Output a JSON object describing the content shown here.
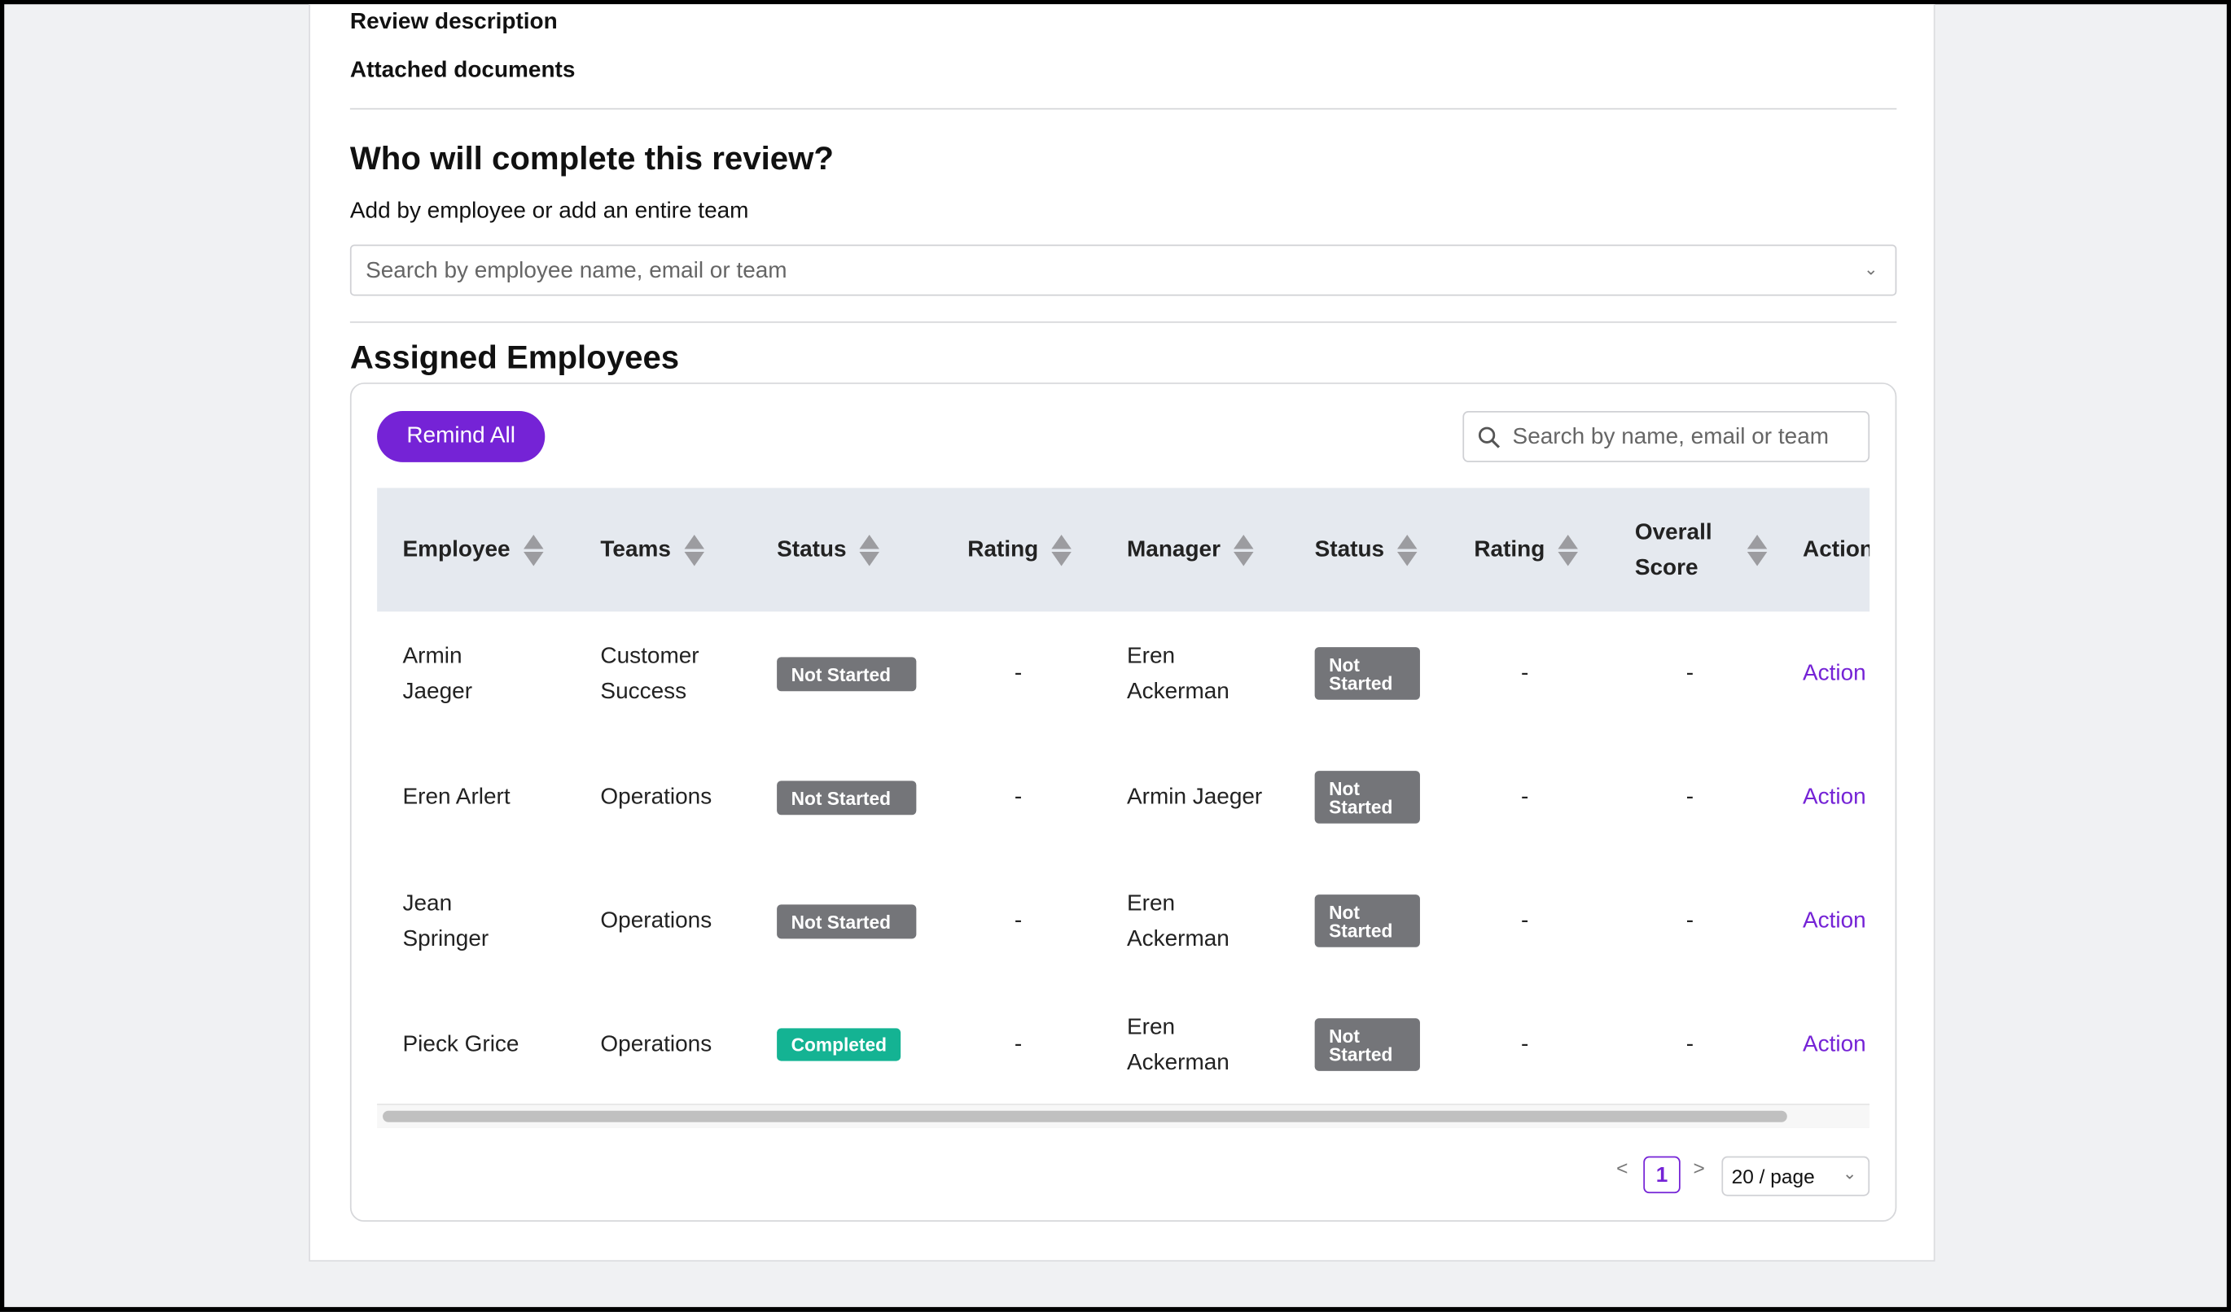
{
  "sections": {
    "review_description": "Review description",
    "attached_documents": "Attached documents"
  },
  "who": {
    "title": "Who will complete this review?",
    "subtitle": "Add by employee or add an entire team",
    "search_placeholder": "Search by employee name, email or team"
  },
  "assigned": {
    "title": "Assigned Employees",
    "remind_all": "Remind All",
    "search_placeholder": "Search by name, email or team",
    "columns": [
      "Employee",
      "Teams",
      "Status",
      "Rating",
      "Manager",
      "Status",
      "Rating",
      "Overall Score",
      "Action"
    ],
    "rows": [
      {
        "employee": "Armin Jaeger",
        "team": "Customer Success",
        "status": "Not Started",
        "rating": "-",
        "manager": "Eren Ackerman",
        "manager_status": "Not Started",
        "manager_rating": "-",
        "overall": "-",
        "action": "Action"
      },
      {
        "employee": "Eren Arlert",
        "team": "Operations",
        "status": "Not Started",
        "rating": "-",
        "manager": "Armin Jaeger",
        "manager_status": "Not Started",
        "manager_rating": "-",
        "overall": "-",
        "action": "Action"
      },
      {
        "employee": "Jean Springer",
        "team": "Operations",
        "status": "Not Started",
        "rating": "-",
        "manager": "Eren Ackerman",
        "manager_status": "Not Started",
        "manager_rating": "-",
        "overall": "-",
        "action": "Action"
      },
      {
        "employee": "Pieck Grice",
        "team": "Operations",
        "status": "Completed",
        "rating": "-",
        "manager": "Eren Ackerman",
        "manager_status": "Not Started",
        "manager_rating": "-",
        "overall": "-",
        "action": "Action"
      }
    ],
    "pagination": {
      "prev": "<",
      "current": "1",
      "next": ">",
      "page_size": "20 / page"
    }
  },
  "colors": {
    "accent": "#7523d6",
    "not_started": "#747579",
    "completed": "#14b393",
    "header_bg": "#e5e9ef"
  }
}
